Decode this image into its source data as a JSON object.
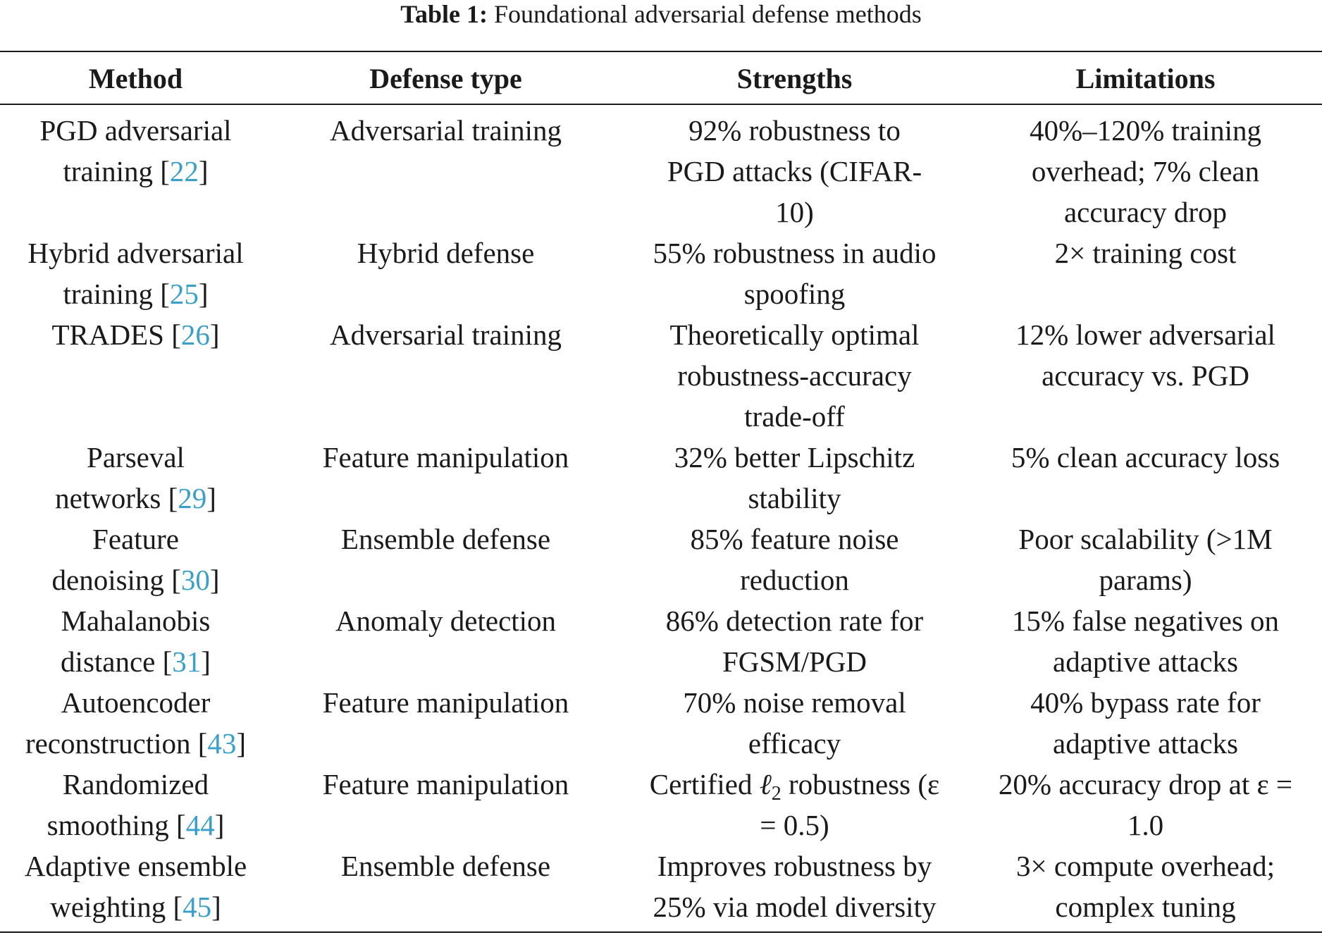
{
  "caption": {
    "label": "Table 1:",
    "text": " Foundational adversarial defense methods"
  },
  "columns": [
    "Method",
    "Defense type",
    "Strengths",
    "Limitations"
  ],
  "rows": [
    {
      "method_a": "PGD adversarial",
      "method_b": "training ",
      "ref": "22",
      "type": "Adversarial training",
      "strengths": "92% robustness to PGD attacks (CIFAR-10)",
      "limitations": "40%–120% training overhead; 7% clean accuracy drop"
    },
    {
      "method_a": "Hybrid adversarial",
      "method_b": "training ",
      "ref": "25",
      "type": "Hybrid defense",
      "strengths": "55% robustness in audio spoofing",
      "limitations": "2× training cost"
    },
    {
      "method_a": "",
      "method_b": "TRADES ",
      "ref": "26",
      "type": "Adversarial training",
      "strengths": "Theoretically optimal robustness-accuracy trade-off",
      "limitations": "12% lower adversarial accuracy vs. PGD"
    },
    {
      "method_a": "Parseval",
      "method_b": "networks ",
      "ref": "29",
      "type": "Feature manipulation",
      "strengths": "32% better Lipschitz stability",
      "limitations": "5% clean accuracy loss"
    },
    {
      "method_a": "Feature",
      "method_b": "denoising ",
      "ref": "30",
      "type": "Ensemble defense",
      "strengths": "85% feature noise reduction",
      "limitations": "Poor scalability (>1M params)"
    },
    {
      "method_a": "Mahalanobis",
      "method_b": "distance ",
      "ref": "31",
      "type": "Anomaly detection",
      "strengths": "86% detection rate for FGSM/PGD",
      "limitations": "15% false negatives on adaptive attacks"
    },
    {
      "method_a": "Autoencoder",
      "method_b": "reconstruction ",
      "ref": "43",
      "type": "Feature manipulation",
      "strengths": "70% noise removal efficacy",
      "limitations": "40% bypass rate for adaptive attacks"
    },
    {
      "method_a": "Randomized",
      "method_b": "smoothing ",
      "ref": "44",
      "type": "Feature manipulation",
      "strengths_pre": "Certified ",
      "strengths_ell": "ℓ",
      "strengths_sub": "2",
      "strengths_post": " robustness (ε = 0.5)",
      "limitations": "20% accuracy drop at ε = 1.0"
    },
    {
      "method_a": "Adaptive ensemble",
      "method_b": "weighting ",
      "ref": "45",
      "type": "Ensemble defense",
      "strengths": "Improves robustness by 25% via model diversity",
      "limitations": "3× compute overhead; complex tuning"
    }
  ],
  "colors": {
    "reference_link": "#3a9fc9",
    "text": "#1a1a1a"
  }
}
